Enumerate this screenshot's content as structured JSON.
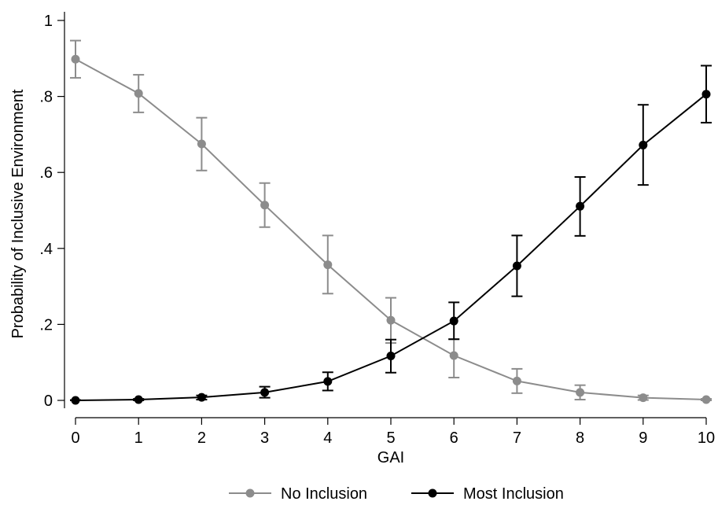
{
  "chart_data": {
    "type": "line",
    "title": "",
    "xlabel": "GAI",
    "ylabel": "Probability of Inclusive Environment",
    "x": [
      0,
      1,
      2,
      3,
      4,
      5,
      6,
      7,
      8,
      9,
      10
    ],
    "xticks": [
      0,
      1,
      2,
      3,
      4,
      5,
      6,
      7,
      8,
      9,
      10
    ],
    "xlim": [
      0,
      10
    ],
    "yticks": [
      0,
      0.2,
      0.4,
      0.6,
      0.8,
      1
    ],
    "ytick_labels": [
      "0",
      ".2",
      ".4",
      ".6",
      ".8",
      "1"
    ],
    "ylim": [
      0,
      1
    ],
    "grid": false,
    "legend_position": "bottom",
    "series": [
      {
        "name": "No Inclusion",
        "color": "#8c8c8c",
        "values": [
          0.898,
          0.808,
          0.675,
          0.514,
          0.357,
          0.211,
          0.118,
          0.051,
          0.021,
          0.007,
          0.002
        ],
        "ci_low": [
          0.849,
          0.758,
          0.605,
          0.456,
          0.281,
          0.151,
          0.06,
          0.019,
          0.002,
          0.001,
          0.0
        ],
        "ci_high": [
          0.947,
          0.857,
          0.744,
          0.572,
          0.434,
          0.27,
          0.161,
          0.083,
          0.04,
          0.013,
          0.004
        ]
      },
      {
        "name": "Most Inclusion",
        "color": "#000000",
        "values": [
          0.0,
          0.002,
          0.008,
          0.021,
          0.05,
          0.117,
          0.209,
          0.354,
          0.511,
          0.672,
          0.806
        ],
        "ci_low": [
          0.0,
          0.0,
          0.002,
          0.007,
          0.026,
          0.073,
          0.161,
          0.274,
          0.433,
          0.567,
          0.731
        ],
        "ci_high": [
          0.001,
          0.004,
          0.013,
          0.036,
          0.074,
          0.16,
          0.258,
          0.434,
          0.588,
          0.778,
          0.881
        ]
      }
    ]
  }
}
